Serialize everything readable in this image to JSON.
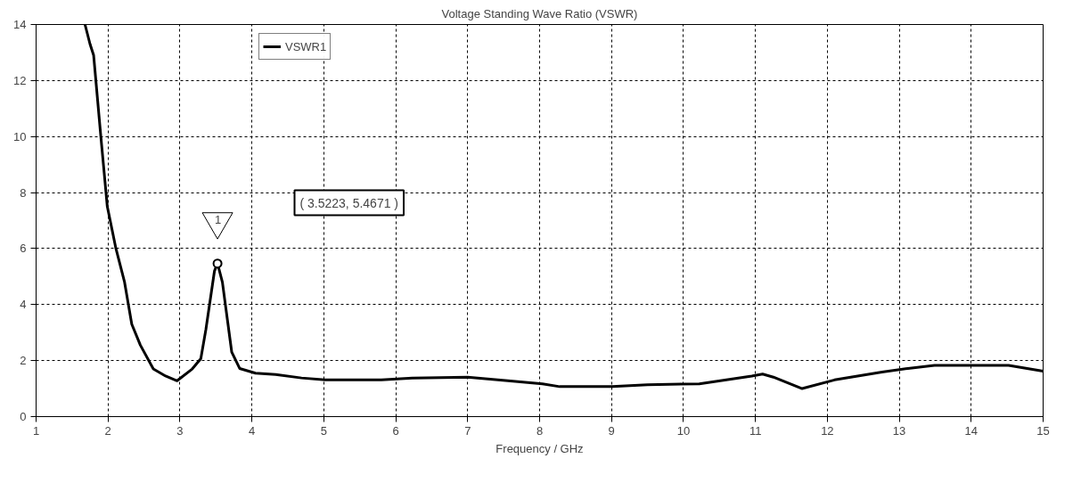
{
  "chart_data": {
    "type": "line",
    "title": "Voltage Standing Wave Ratio (VSWR)",
    "xlabel": "Frequency / GHz",
    "xlim": [
      1,
      15
    ],
    "ylim": [
      0,
      14
    ],
    "xticks": [
      1,
      2,
      3,
      4,
      5,
      6,
      7,
      8,
      9,
      10,
      11,
      12,
      13,
      14,
      15
    ],
    "yticks": [
      0,
      2,
      4,
      6,
      8,
      10,
      12,
      14
    ],
    "grid": true,
    "legend": "top left",
    "marker": "none",
    "line_style": "solid",
    "series": [
      {
        "name": "VSWR1",
        "color": "#000000",
        "x": [
          1.68,
          1.75,
          1.8,
          1.9,
          1.99,
          2.11,
          2.23,
          2.33,
          2.45,
          2.63,
          2.8,
          2.96,
          3.17,
          3.29,
          3.36,
          3.48,
          3.5223,
          3.59,
          3.66,
          3.72,
          3.83,
          4.05,
          4.33,
          4.69,
          5.02,
          5.8,
          6.23,
          7.0,
          7.56,
          8.04,
          8.28,
          9.01,
          9.5,
          10.22,
          10.95,
          11.1,
          11.25,
          11.65,
          12.1,
          12.76,
          13.12,
          13.49,
          14.52,
          15
        ],
        "values": [
          14,
          13.3,
          12.9,
          10.0,
          7.5,
          6.0,
          4.8,
          3.3,
          2.55,
          1.7,
          1.45,
          1.28,
          1.7,
          2.07,
          3.1,
          5.2,
          5.4671,
          4.8,
          3.45,
          2.3,
          1.72,
          1.55,
          1.5,
          1.38,
          1.31,
          1.31,
          1.38,
          1.41,
          1.28,
          1.17,
          1.07,
          1.07,
          1.14,
          1.17,
          1.45,
          1.52,
          1.41,
          1.0,
          1.31,
          1.59,
          1.72,
          1.83,
          1.83,
          1.62
        ]
      }
    ],
    "annotations": [
      "1",
      "( 3.5223, 5.4671 )"
    ]
  }
}
